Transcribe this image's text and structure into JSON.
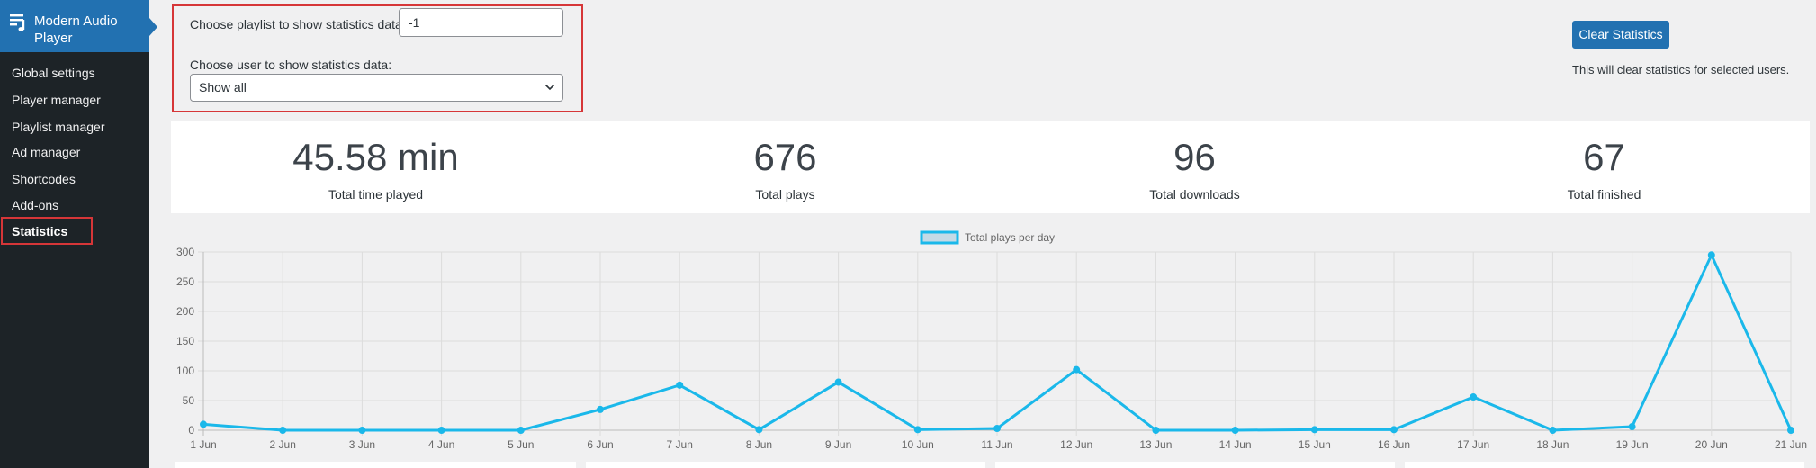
{
  "sidebar": {
    "title": "Modern Audio Player",
    "icon": "playlist-icon",
    "items": [
      {
        "label": "Global settings"
      },
      {
        "label": "Player manager"
      },
      {
        "label": "Playlist manager"
      },
      {
        "label": "Ad manager"
      },
      {
        "label": "Shortcodes"
      },
      {
        "label": "Add-ons"
      },
      {
        "label": "Statistics",
        "active": true
      }
    ]
  },
  "filters": {
    "playlist_label": "Choose playlist to show statistics data:",
    "playlist_value": "-1",
    "user_label": "Choose user to show statistics data:",
    "user_value": "Show all"
  },
  "actions": {
    "clear_label": "Clear Statistics",
    "clear_note": "This will clear statistics for selected users."
  },
  "stats": [
    {
      "value": "45.58 min",
      "caption": "Total time played"
    },
    {
      "value": "676",
      "caption": "Total plays"
    },
    {
      "value": "96",
      "caption": "Total downloads"
    },
    {
      "value": "67",
      "caption": "Total finished"
    }
  ],
  "colors": {
    "accent": "#2271b1",
    "highlight": "#d63638",
    "sidebar_bg": "#1d2327",
    "line": "#1ab8ea",
    "line_fill": "#c4dae6"
  },
  "chart_data": {
    "type": "line",
    "categories": [
      "1 Jun",
      "2 Jun",
      "3 Jun",
      "4 Jun",
      "5 Jun",
      "6 Jun",
      "7 Jun",
      "8 Jun",
      "9 Jun",
      "10 Jun",
      "11 Jun",
      "12 Jun",
      "13 Jun",
      "14 Jun",
      "15 Jun",
      "16 Jun",
      "17 Jun",
      "18 Jun",
      "19 Jun",
      "20 Jun",
      "21 Jun"
    ],
    "series": [
      {
        "name": "Total plays per day",
        "values": [
          10,
          0,
          0,
          0,
          0,
          35,
          76,
          1,
          81,
          1,
          3,
          102,
          0,
          0,
          1,
          1,
          56,
          0,
          6,
          295,
          0
        ]
      }
    ],
    "ylim": [
      0,
      300
    ],
    "yticks": [
      0,
      50,
      100,
      150,
      200,
      250,
      300
    ],
    "grid": true,
    "legend": "top-center"
  }
}
